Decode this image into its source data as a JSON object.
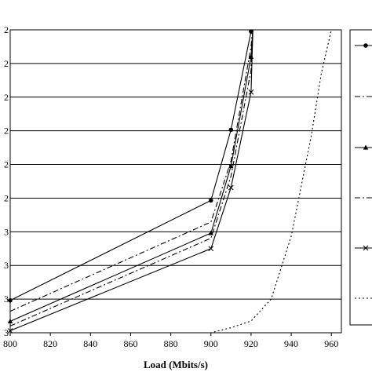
{
  "chart_data": {
    "type": "line",
    "xlabel": "Load (Mbits/s)",
    "xlim": [
      800,
      965
    ],
    "x_ticks": [
      800,
      820,
      840,
      860,
      880,
      900,
      920,
      940,
      960
    ],
    "y_tick_labels": [
      "2",
      "2",
      "2",
      "2",
      "2",
      "2",
      "3",
      "3",
      "3",
      "3"
    ],
    "ylim": [
      0,
      9
    ],
    "grid": true,
    "legend_placement": "right",
    "series": [
      {
        "marker": "circle",
        "dash": "solid",
        "x": [
          800,
          900,
          910,
          920,
          921
        ],
        "y": [
          0.96,
          3.93,
          6.03,
          8.95,
          9.2
        ]
      },
      {
        "marker": "none",
        "dash": "dashdot",
        "x": [
          800,
          900,
          910,
          920,
          921
        ],
        "y": [
          0.64,
          3.29,
          5.1,
          8.5,
          9.2
        ]
      },
      {
        "marker": "triangle",
        "dash": "solid",
        "x": [
          800,
          900,
          910,
          920,
          921
        ],
        "y": [
          0.34,
          2.96,
          4.95,
          8.2,
          9.2
        ]
      },
      {
        "marker": "none",
        "dash": "dashdot",
        "x": [
          800,
          900,
          910,
          920,
          921
        ],
        "y": [
          0.2,
          2.81,
          4.65,
          7.8,
          9.2
        ]
      },
      {
        "marker": "x",
        "dash": "solid",
        "x": [
          800,
          900,
          910,
          920,
          921
        ],
        "y": [
          0.06,
          2.5,
          4.31,
          7.15,
          9.2
        ]
      },
      {
        "marker": "none",
        "dash": "dotted",
        "x": [
          800,
          900,
          910,
          920,
          930,
          940,
          950,
          955,
          960,
          962
        ],
        "y": [
          -0.2,
          0.0,
          0.15,
          0.35,
          1.0,
          2.87,
          5.85,
          7.7,
          9.0,
          9.2
        ]
      }
    ]
  }
}
